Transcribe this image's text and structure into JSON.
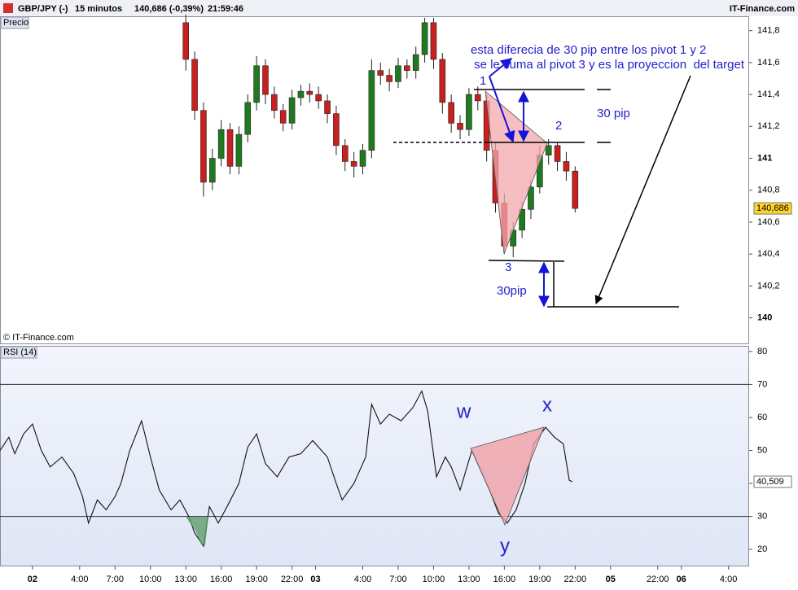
{
  "header": {
    "symbol": "GBP/JPY (-)",
    "interval": "15 minutos",
    "quote": "140,686 (-0,39%)",
    "time": "21:59:46",
    "brand": "IT-Finance.com",
    "watermark": "© IT-Finance.com"
  },
  "chart_data": [
    {
      "type": "candlestick",
      "title": "Precio",
      "xlim": [
        -11,
        243
      ],
      "ylim": [
        139.84,
        141.89
      ],
      "yticks": [
        140,
        {
          "value": 140.2,
          "label": "140,2"
        },
        {
          "value": 140.4,
          "label": "140,4"
        },
        {
          "value": 140.6,
          "label": "140,6"
        },
        {
          "value": 140.8,
          "label": "140,8"
        },
        141,
        {
          "value": 141.2,
          "label": "141,2"
        },
        {
          "value": 141.4,
          "label": "141,4"
        },
        {
          "value": 141.6,
          "label": "141,6"
        },
        {
          "value": 141.8,
          "label": "141,8"
        }
      ],
      "last_value": {
        "value": 140.686,
        "label": "140,686"
      },
      "up_color": "#1f7a1f",
      "down_color": "#c8201e",
      "x": [
        52,
        55,
        58,
        61,
        64,
        67,
        70,
        73,
        76,
        79,
        82,
        85,
        88,
        91,
        94,
        97,
        100,
        103,
        106,
        109,
        112,
        115,
        118,
        121,
        124,
        127,
        130,
        133,
        136,
        139,
        142,
        145,
        148,
        151,
        154,
        157,
        160,
        163,
        166,
        169,
        172,
        175,
        178,
        181,
        184
      ],
      "open": [
        141.85,
        141.62,
        141.3,
        140.85,
        141.0,
        141.18,
        140.95,
        141.15,
        141.35,
        141.58,
        141.4,
        141.3,
        141.22,
        141.38,
        141.42,
        141.4,
        141.36,
        141.28,
        141.08,
        140.98,
        140.95,
        141.05,
        141.55,
        141.52,
        141.48,
        141.58,
        141.55,
        141.65,
        141.85,
        141.62,
        141.35,
        141.22,
        141.18,
        141.4,
        141.36,
        141.05,
        140.72,
        140.45,
        140.55,
        140.68,
        140.82,
        141.02,
        141.08,
        140.98,
        140.92
      ],
      "high": [
        141.9,
        141.67,
        141.35,
        141.06,
        141.24,
        141.22,
        141.2,
        141.4,
        141.64,
        141.62,
        141.45,
        141.34,
        141.43,
        141.46,
        141.47,
        141.45,
        141.4,
        141.33,
        141.12,
        141.04,
        141.09,
        141.62,
        141.6,
        141.56,
        141.63,
        141.62,
        141.7,
        141.88,
        141.88,
        141.66,
        141.4,
        141.27,
        141.44,
        141.45,
        141.4,
        141.1,
        140.78,
        140.6,
        140.73,
        140.86,
        141.08,
        141.12,
        141.1,
        141.04,
        140.95
      ],
      "low": [
        141.55,
        141.24,
        140.76,
        140.8,
        140.95,
        140.9,
        140.9,
        141.1,
        141.3,
        141.34,
        141.25,
        141.17,
        141.18,
        141.33,
        141.35,
        141.31,
        141.22,
        141.02,
        140.92,
        140.88,
        140.9,
        141.0,
        141.46,
        141.42,
        141.44,
        141.5,
        141.5,
        141.6,
        141.56,
        141.28,
        141.16,
        141.12,
        141.14,
        141.3,
        140.98,
        140.66,
        140.4,
        140.38,
        140.5,
        140.62,
        140.78,
        140.96,
        140.92,
        140.86,
        140.66
      ],
      "close": [
        141.62,
        141.3,
        140.85,
        141.0,
        141.18,
        140.95,
        141.15,
        141.35,
        141.58,
        141.4,
        141.3,
        141.22,
        141.38,
        141.42,
        141.4,
        141.36,
        141.28,
        141.08,
        140.98,
        140.95,
        141.05,
        141.55,
        141.52,
        141.48,
        141.58,
        141.55,
        141.65,
        141.85,
        141.62,
        141.35,
        141.22,
        141.18,
        141.4,
        141.36,
        141.05,
        140.72,
        140.45,
        140.55,
        140.68,
        140.82,
        141.02,
        141.08,
        140.98,
        140.92,
        140.686
      ],
      "annotations": [
        "esta diferecia de 30 pip entre los pivot 1 y 2",
        " se le suma al pivot 3 y es la proyeccion  del target",
        "1",
        "2",
        "3",
        "30 pip",
        "30pip"
      ]
    },
    {
      "type": "line",
      "title": "RSI (14)",
      "xlim": [
        -11,
        243
      ],
      "ylim": [
        15.1,
        81.7
      ],
      "yticks": [
        20,
        30,
        40,
        50,
        60,
        70,
        80
      ],
      "band_lines": [
        30,
        70
      ],
      "last_value": {
        "value": 40.509,
        "label": "40,509"
      },
      "color": "#111111",
      "xticks": [
        {
          "value": 0,
          "label": "02"
        },
        {
          "value": 16,
          "label": "4:00"
        },
        {
          "value": 28,
          "label": "7:00"
        },
        {
          "value": 40,
          "label": "10:00"
        },
        {
          "value": 52,
          "label": "13:00"
        },
        {
          "value": 64,
          "label": "16:00"
        },
        {
          "value": 76,
          "label": "19:00"
        },
        {
          "value": 88,
          "label": "22:00"
        },
        {
          "value": 96,
          "label": "03"
        },
        {
          "value": 112,
          "label": "4:00"
        },
        {
          "value": 124,
          "label": "7:00"
        },
        {
          "value": 136,
          "label": "10:00"
        },
        {
          "value": 148,
          "label": "13:00"
        },
        {
          "value": 160,
          "label": "16:00"
        },
        {
          "value": 172,
          "label": "19:00"
        },
        {
          "value": 184,
          "label": "22:00"
        },
        {
          "value": 196,
          "label": "05"
        },
        {
          "value": 212,
          "label": "22:00"
        },
        {
          "value": 220,
          "label": "06"
        },
        {
          "value": 236,
          "label": "4:00"
        }
      ],
      "x": [
        -11,
        -8,
        -6,
        -3,
        0,
        3,
        6,
        10,
        14,
        17,
        19,
        22,
        25,
        28,
        30,
        33,
        37,
        40,
        43,
        47,
        50,
        53,
        55,
        58,
        60,
        63,
        66,
        70,
        73,
        76,
        79,
        83,
        87,
        91,
        95,
        100,
        103,
        105,
        109,
        113,
        115,
        118,
        121,
        125,
        129,
        132,
        134,
        137,
        140,
        142,
        145,
        149,
        152,
        155,
        158,
        161,
        164,
        167,
        170,
        174,
        177,
        180,
        182,
        183
      ],
      "values": [
        50,
        54,
        49,
        55,
        58,
        50,
        45,
        48,
        43,
        36,
        28,
        35,
        32,
        36,
        40,
        50,
        59,
        48,
        38,
        32,
        35,
        30,
        25,
        21,
        33,
        28,
        33,
        40,
        51,
        55,
        46,
        42,
        48,
        49,
        53,
        48,
        40,
        35,
        40,
        48,
        64,
        58,
        61,
        59,
        63,
        68,
        62,
        42,
        48,
        45,
        38,
        50,
        44,
        38,
        31,
        28,
        32,
        40,
        52,
        57,
        54,
        52,
        41,
        40.509
      ],
      "annotations": [
        "w",
        "x",
        "y"
      ]
    }
  ]
}
